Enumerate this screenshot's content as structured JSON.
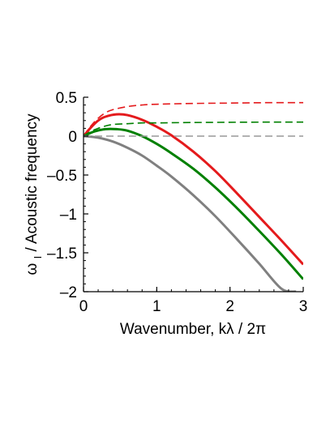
{
  "chart_data": {
    "type": "line",
    "title": "",
    "xlabel": "Wavenumber, kλ / 2π",
    "ylabel": "ω",
    "ylabel_subscript": "I",
    "ylabel_rest": " / Acoustic frequency",
    "xlim": [
      0,
      3
    ],
    "ylim": [
      -2,
      0.5
    ],
    "x_ticks": [
      0,
      1,
      2,
      3
    ],
    "x_tick_labels": [
      "0",
      "1",
      "2",
      "3"
    ],
    "y_ticks": [
      0.5,
      0,
      -0.5,
      -1,
      -1.5,
      -2
    ],
    "y_tick_labels": [
      "0.5",
      "0",
      "–0.5",
      "–1",
      "–1.5",
      "–2"
    ],
    "grid": false,
    "legend": "none",
    "series": [
      {
        "color": "#e41a1c",
        "style": "solid",
        "x": [
          0,
          0.1,
          0.2,
          0.3,
          0.45,
          0.6,
          0.8,
          1.0,
          1.2,
          1.5,
          1.8,
          2.1,
          2.4,
          2.7,
          3.0
        ],
        "y": [
          0,
          0.11,
          0.2,
          0.25,
          0.28,
          0.27,
          0.21,
          0.12,
          0.01,
          -0.2,
          -0.45,
          -0.74,
          -1.04,
          -1.34,
          -1.65
        ]
      },
      {
        "color": "#e41a1c",
        "style": "dashed",
        "x": [
          0,
          0.1,
          0.2,
          0.3,
          0.4,
          0.6,
          0.8,
          1.0,
          1.5,
          2.0,
          2.5,
          3.0
        ],
        "y": [
          0,
          0.13,
          0.23,
          0.3,
          0.34,
          0.38,
          0.4,
          0.41,
          0.42,
          0.425,
          0.43,
          0.43
        ]
      },
      {
        "color": "#008000",
        "style": "solid",
        "x": [
          0,
          0.15,
          0.3,
          0.45,
          0.6,
          0.8,
          1.0,
          1.2,
          1.5,
          1.8,
          2.1,
          2.4,
          2.7,
          3.0
        ],
        "y": [
          0,
          0.06,
          0.09,
          0.09,
          0.07,
          0.0,
          -0.1,
          -0.22,
          -0.42,
          -0.66,
          -0.93,
          -1.22,
          -1.52,
          -1.84
        ]
      },
      {
        "color": "#008000",
        "style": "dashed",
        "x": [
          0,
          0.1,
          0.2,
          0.3,
          0.4,
          0.6,
          0.8,
          1.0,
          1.5,
          2.0,
          2.5,
          3.0
        ],
        "y": [
          0,
          0.06,
          0.1,
          0.13,
          0.15,
          0.16,
          0.17,
          0.17,
          0.175,
          0.178,
          0.18,
          0.18
        ]
      },
      {
        "color": "#808080",
        "style": "solid",
        "x": [
          0,
          0.2,
          0.4,
          0.6,
          0.8,
          1.0,
          1.2,
          1.5,
          1.8,
          2.1,
          2.4,
          2.7,
          2.9
        ],
        "y": [
          0,
          -0.02,
          -0.07,
          -0.15,
          -0.25,
          -0.38,
          -0.52,
          -0.76,
          -1.03,
          -1.33,
          -1.64,
          -1.96,
          -2.0
        ]
      },
      {
        "color": "#999999",
        "style": "dashed",
        "x": [
          0,
          3
        ],
        "y": [
          0,
          0
        ]
      }
    ]
  }
}
